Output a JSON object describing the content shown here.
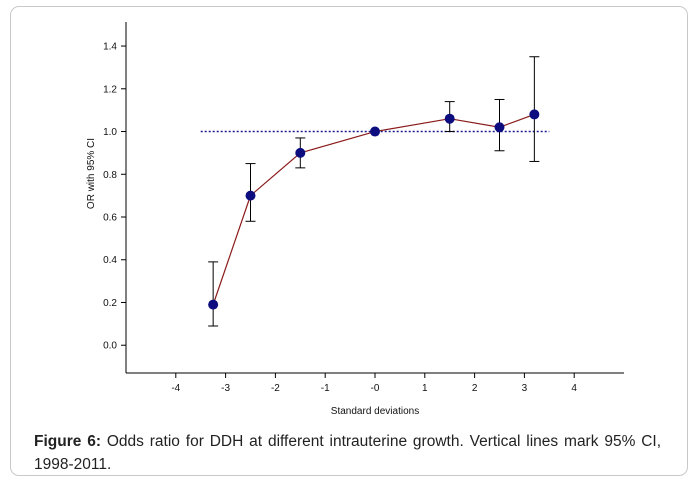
{
  "chart_data": {
    "type": "scatter",
    "xlabel": "Standard deviations",
    "ylabel": "OR with 95% CI",
    "xlim": [
      -5,
      5
    ],
    "ylim": [
      -0.13,
      1.55
    ],
    "x_ticks": [
      -4,
      -3,
      -2,
      -1,
      0,
      1,
      2,
      3,
      4
    ],
    "x_tick_labels": [
      "-4",
      "-3",
      "-2",
      "-1",
      "-0",
      "1",
      "2",
      "3",
      "4"
    ],
    "y_ticks": [
      0.0,
      0.2,
      0.4,
      0.6,
      0.8,
      1.0,
      1.2,
      1.4
    ],
    "y_tick_labels": [
      "0.0",
      "0.2",
      "0.4",
      "0.6",
      "0.8",
      "1.0",
      "1.2",
      "1.4"
    ],
    "reference_line": {
      "y": 1.0,
      "x_from": -3.5,
      "x_to": 3.5,
      "style": "dotted",
      "color": "#1a1a8c"
    },
    "series": [
      {
        "line_color": "#8b1a1a",
        "marker_color": "#0d0d80",
        "points": [
          {
            "x": -3.25,
            "y": 0.19,
            "lo": 0.09,
            "hi": 0.39
          },
          {
            "x": -2.5,
            "y": 0.7,
            "lo": 0.58,
            "hi": 0.85
          },
          {
            "x": -1.5,
            "y": 0.9,
            "lo": 0.83,
            "hi": 0.97
          },
          {
            "x": 0.0,
            "y": 1.0,
            "lo": 1.0,
            "hi": 1.0
          },
          {
            "x": 1.5,
            "y": 1.06,
            "lo": 1.0,
            "hi": 1.14
          },
          {
            "x": 2.5,
            "y": 1.02,
            "lo": 0.91,
            "hi": 1.15
          },
          {
            "x": 3.2,
            "y": 1.08,
            "lo": 0.86,
            "hi": 1.35
          }
        ]
      }
    ],
    "grid": false,
    "legend": "none"
  },
  "caption": {
    "label": "Figure 6:",
    "text": " Odds ratio for DDH at different intrauterine growth. Vertical lines mark 95% CI, 1998-2011."
  }
}
